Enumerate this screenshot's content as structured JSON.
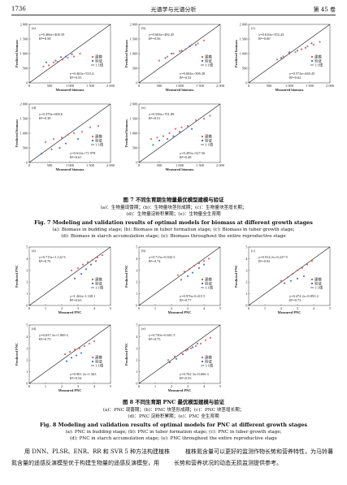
{
  "header": {
    "page": "1736",
    "journal": "光谱学与光谱分析",
    "volume": "第 45 卷"
  },
  "figures": [
    {
      "caption_cn": "图 7   不同生育期生物量最优模型建模与验证",
      "sub_cn": [
        "(a)：生物量现蕾期；(b)：生物量块茎形成期；(c)：生物量块茎增长期；",
        "(d)：生物量淀粉积累期；(e)：生物量全生育期"
      ],
      "caption_en": "Fig. 7   Modeling and validation results of optimal models for biomass at different growth stages",
      "sub_en": [
        "(a): Biomass in budding stage; (b): Biomass in tuber formation stage; (c): Biomass in tuber growth stage;",
        "(d): Biomass in starch accumulation stage; (e): Biomass throughout the entire reproductive stage"
      ],
      "panels": [
        {
          "type": "scatter",
          "label": "(a)",
          "xlabel": "Measured biomass",
          "ylabel": "Predicted biomass",
          "line_label": "1:1线",
          "xlim": [
            0,
            2000
          ],
          "ylim": [
            0,
            2000
          ],
          "xticks": [
            0,
            500,
            {
              "value": 1000,
              "label": "1 000"
            },
            {
              "value": 1500,
              "label": "1 500"
            },
            {
              "value": 2000,
              "label": "2 000"
            }
          ],
          "yticks": [
            0,
            500,
            {
              "value": 1000,
              "label": "1 000"
            },
            {
              "value": 1500,
              "label": "1 500"
            },
            {
              "value": 2000,
              "label": "2 000"
            }
          ],
          "annotations": [
            "y=0.466x+406.39",
            "R²=0.58",
            "y=0.463x+533.4",
            "R²=0.55"
          ],
          "series": [
            {
              "name": "建模",
              "color": "#d9534f",
              "x": [
                350,
                480,
                600,
                700,
                820,
                950,
                1100,
                1250
              ],
              "values": [
                560,
                600,
                700,
                720,
                800,
                860,
                900,
                1000
              ]
            },
            {
              "name": "验证",
              "color": "#3566b8",
              "x": [
                420,
                650,
                780,
                900,
                1050
              ],
              "values": [
                700,
                760,
                880,
                900,
                980
              ]
            }
          ]
        },
        {
          "type": "scatter",
          "label": "(b)",
          "xlabel": "Measured biomass",
          "ylabel": "Predicted biomass",
          "line_label": "1:1线",
          "xlim": [
            0,
            2000
          ],
          "ylim": [
            0,
            2000
          ],
          "xticks": [
            0,
            500,
            {
              "value": 1000,
              "label": "1 000"
            },
            {
              "value": 1500,
              "label": "1 500"
            },
            {
              "value": 2000,
              "label": "2 000"
            }
          ],
          "yticks": [
            0,
            500,
            {
              "value": 1000,
              "label": "1 000"
            },
            {
              "value": 1500,
              "label": "1 500"
            },
            {
              "value": 2000,
              "label": "2 000"
            }
          ],
          "annotations": [
            "y=0.604x+482.45",
            "R²=0.56",
            "y=0.604x+506.38",
            "R²=0.52"
          ],
          "series": [
            {
              "name": "建模",
              "color": "#d9534f",
              "x": [
                500,
                700,
                850,
                1000,
                1150,
                1300,
                1450,
                1600
              ],
              "values": [
                760,
                900,
                1000,
                1080,
                1150,
                1300,
                1350,
                1450
              ]
            },
            {
              "name": "验证",
              "color": "#3566b8",
              "x": [
                650,
                800,
                1050,
                1250,
                1400
              ],
              "values": [
                850,
                1000,
                1100,
                1250,
                1300
              ]
            }
          ]
        },
        {
          "type": "scatter",
          "label": "(c)",
          "xlabel": "Measured biomass",
          "ylabel": "Predicted biomass",
          "line_label": "1:1线",
          "xlim": [
            0,
            2000
          ],
          "ylim": [
            0,
            2000
          ],
          "xticks": [
            0,
            500,
            {
              "value": 1000,
              "label": "1 000"
            },
            {
              "value": 1500,
              "label": "1 500"
            },
            {
              "value": 2000,
              "label": "2 000"
            }
          ],
          "yticks": [
            0,
            500,
            {
              "value": 1000,
              "label": "1 000"
            },
            {
              "value": 1500,
              "label": "1 500"
            },
            {
              "value": 2000,
              "label": "2 000"
            }
          ],
          "annotations": [
            "y=0.616x+352.43",
            "R²=0.60",
            "y=0.574x+440.45",
            "R²=0.62"
          ],
          "series": [
            {
              "name": "建模",
              "color": "#d9534f",
              "x": [
                700,
                850,
                1000,
                1150,
                1300,
                1450,
                1600,
                1750
              ],
              "values": [
                800,
                900,
                1000,
                1050,
                1150,
                1250,
                1300,
                1400
              ]
            },
            {
              "name": "验证",
              "color": "#3566b8",
              "x": [
                800,
                1000,
                1200,
                1400,
                1550
              ],
              "values": [
                850,
                1050,
                1100,
                1200,
                1350
              ]
            }
          ]
        },
        {
          "type": "scatter",
          "label": "(d)",
          "xlabel": "Measured biomass",
          "ylabel": "Predicted biomass",
          "line_label": "1:1线",
          "xlim": [
            0,
            2000
          ],
          "ylim": [
            0,
            2000
          ],
          "xticks": [
            0,
            500,
            {
              "value": 1000,
              "label": "1 000"
            },
            {
              "value": 1500,
              "label": "1 500"
            },
            {
              "value": 2000,
              "label": "2 000"
            }
          ],
          "yticks": [
            0,
            500,
            {
              "value": 1000,
              "label": "1 000"
            },
            {
              "value": 1500,
              "label": "1 500"
            },
            {
              "value": 2000,
              "label": "2 000"
            }
          ],
          "annotations": [
            "y=0.379x+609.6",
            "R²=0.38",
            "y=0.614x+71.978",
            "R²=0.61"
          ],
          "series": [
            {
              "name": "建模",
              "color": "#d9534f",
              "x": [
                400,
                600,
                800,
                950,
                1100,
                1300,
                1500,
                1700
              ],
              "values": [
                700,
                800,
                850,
                950,
                1000,
                1050,
                1200,
                1250
              ]
            },
            {
              "name": "验证",
              "color": "#3566b8",
              "x": [
                300,
                550,
                750,
                900,
                1200
              ],
              "values": [
                300,
                450,
                500,
                650,
                800
              ]
            }
          ]
        },
        {
          "type": "scatter",
          "label": "(e)",
          "xlabel": "Measured biomass",
          "ylabel": "Predicted biomass",
          "line_label": "1:1线",
          "xlim": [
            0,
            2000
          ],
          "ylim": [
            0,
            2000
          ],
          "xticks": [
            0,
            500,
            {
              "value": 1000,
              "label": "1 000"
            },
            {
              "value": 1500,
              "label": "1 500"
            },
            {
              "value": 2000,
              "label": "2 000"
            }
          ],
          "yticks": [
            0,
            500,
            {
              "value": 1000,
              "label": "1 000"
            },
            {
              "value": 1500,
              "label": "1 500"
            },
            {
              "value": 2000,
              "label": "2 000"
            }
          ],
          "annotations": [
            "y=0.538x+701.89",
            "R²=0.51",
            "y=0.495x+527.56",
            "R²=0.48"
          ],
          "series": [
            {
              "name": "建模",
              "color": "#d9534f",
              "x": [
                300,
                450,
                600,
                750,
                900,
                1050,
                1200,
                1400,
                1600,
                1750
              ],
              "values": [
                800,
                850,
                900,
                1000,
                1150,
                1200,
                1250,
                1450,
                1500,
                1600
              ]
            },
            {
              "name": "验证",
              "color": "#3566b8",
              "x": [
                350,
                500,
                700,
                850,
                1000,
                1300
              ],
              "values": [
                600,
                750,
                800,
                900,
                1050,
                1150
              ]
            }
          ]
        }
      ]
    },
    {
      "caption_cn": "图 8   不同生育期 PNC 最优模型建模与验证",
      "sub_cn": [
        "(a)：PNC 现蕾期；(b)：PNC 块茎形成期；(c)：PNC 块茎增长期；",
        "(d)：PNC 淀粉积累期；(e)：PNC 全生育期"
      ],
      "caption_en": "Fig. 8   Modeling and validation results of optimal models for PNC at different growth stages",
      "sub_en": [
        "(a): PNC in budding stage; (b): PNC in tuber formation stage; (c): PNC in tuber growth stage;",
        "(d): PNC in starch accumulation stage; (e): PNC throughout the entire reproductive stage"
      ],
      "panels": [
        {
          "type": "scatter",
          "label": "(a)",
          "xlabel": "Measured PNC",
          "ylabel": "Predicted PNC",
          "line_label": "1:1线",
          "xlim": [
            0,
            5
          ],
          "ylim": [
            0,
            5
          ],
          "xticks": [
            0,
            1,
            2,
            3,
            4,
            5
          ],
          "yticks": [
            0,
            1,
            2,
            3,
            4,
            5
          ],
          "annotations": [
            "y=0.715x+1.122 9",
            "R²=0.76",
            "y=1.262x-1.338 1",
            "R²=0.63"
          ],
          "series": [
            {
              "name": "建模",
              "color": "#d9534f",
              "x": [
                2.6,
                3.0,
                3.3,
                3.6,
                3.9,
                4.2,
                4.5
              ],
              "values": [
                3.0,
                3.2,
                3.5,
                3.7,
                3.9,
                4.1,
                4.3
              ]
            },
            {
              "name": "验证",
              "color": "#3566b8",
              "x": [
                2.8,
                3.2,
                3.5,
                3.8,
                4.1
              ],
              "values": [
                2.3,
                2.7,
                3.1,
                3.5,
                3.8
              ]
            }
          ]
        },
        {
          "type": "scatter",
          "label": "(b)",
          "xlabel": "Measured PNC",
          "ylabel": "Predicted PNC",
          "line_label": "1:1线",
          "xlim": [
            0,
            5
          ],
          "ylim": [
            0,
            5
          ],
          "xticks": [
            0,
            1,
            2,
            3,
            4,
            5
          ],
          "yticks": [
            0,
            1,
            2,
            3,
            4,
            5
          ],
          "annotations": [
            "y=0.713x+0.943 5",
            "R²=0.74",
            "y=0.976x-0.415 5",
            "R²=0.77"
          ],
          "series": [
            {
              "name": "建模",
              "color": "#d9534f",
              "x": [
                2.4,
                2.8,
                3.1,
                3.4,
                3.7,
                4.0,
                4.3
              ],
              "values": [
                2.6,
                2.9,
                3.1,
                3.4,
                3.6,
                3.8,
                4.0
              ]
            },
            {
              "name": "验证",
              "color": "#3566b8",
              "x": [
                2.6,
                3.0,
                3.3,
                3.7,
                4.0
              ],
              "values": [
                2.2,
                2.5,
                2.8,
                3.2,
                3.5
              ]
            }
          ]
        },
        {
          "type": "scatter",
          "label": "(c)",
          "xlabel": "Measured PNC",
          "ylabel": "Predicted PNC",
          "line_label": "1:1线",
          "xlim": [
            0,
            5
          ],
          "ylim": [
            0,
            5
          ],
          "xticks": [
            0,
            1,
            2,
            3,
            4,
            5
          ],
          "yticks": [
            0,
            1,
            2,
            3,
            4,
            5
          ],
          "annotations": [
            "y=0.914 2x+0.227 9",
            "R²=0.92",
            "y=0.474 2x+0.893 4",
            "R²=0.73"
          ],
          "series": [
            {
              "name": "建模",
              "color": "#d9534f",
              "x": [
                2.0,
                2.4,
                2.7,
                3.0,
                3.3,
                3.6,
                3.9
              ],
              "values": [
                2.1,
                2.4,
                2.7,
                3.0,
                3.2,
                3.5,
                3.8
              ]
            },
            {
              "name": "验证",
              "color": "#3566b8",
              "x": [
                2.2,
                2.6,
                3.0,
                3.4
              ],
              "values": [
                1.9,
                2.1,
                2.3,
                2.5
              ]
            }
          ]
        },
        {
          "type": "scatter",
          "label": "(d)",
          "xlabel": "Measured PNC",
          "ylabel": "Predicted PNC",
          "line_label": "1:1线",
          "xlim": [
            0,
            5
          ],
          "ylim": [
            0,
            5
          ],
          "xticks": [
            0,
            1,
            2,
            3,
            4,
            5
          ],
          "yticks": [
            0,
            1,
            2,
            3,
            4,
            5
          ],
          "annotations": [
            "y=0.637 3x+1.069 4",
            "R²=0.75",
            "y=0.901 2x+1.363",
            "R²=0.54"
          ],
          "series": [
            {
              "name": "建模",
              "color": "#d9534f",
              "x": [
                2.2,
                2.5,
                2.8,
                3.1,
                3.4,
                3.7,
                4.0
              ],
              "values": [
                2.5,
                2.7,
                2.9,
                3.0,
                3.2,
                3.4,
                3.6
              ]
            },
            {
              "name": "验证",
              "color": "#3566b8",
              "x": [
                2.3,
                2.6,
                2.9,
                3.2
              ],
              "values": [
                1.9,
                2.2,
                2.4,
                2.6
              ]
            }
          ]
        },
        {
          "type": "scatter",
          "label": "(e)",
          "xlabel": "Measured PNC",
          "ylabel": "Predicted PNC",
          "line_label": "1:1线",
          "xlim": [
            0,
            5
          ],
          "ylim": [
            0,
            5
          ],
          "xticks": [
            0,
            1,
            2,
            3,
            4,
            5
          ],
          "yticks": [
            0,
            1,
            2,
            3,
            4,
            5
          ],
          "annotations": [
            "y=0.730x+0.601 5",
            "R²=0.75",
            "y=0.762 3x+0.606 3",
            "R²=0.55"
          ],
          "series": [
            {
              "name": "建模",
              "color": "#d9534f",
              "x": [
                1.8,
                2.2,
                2.6,
                2.9,
                3.2,
                3.5,
                3.8,
                4.1,
                4.4
              ],
              "values": [
                2.0,
                2.3,
                2.6,
                2.8,
                3.0,
                3.2,
                3.4,
                3.7,
                3.9
              ]
            },
            {
              "name": "验证",
              "color": "#3566b8",
              "x": [
                1.9,
                2.3,
                2.7,
                3.0,
                3.3,
                3.6
              ],
              "values": [
                1.8,
                2.1,
                2.5,
                2.9,
                3.1,
                3.4
              ]
            }
          ]
        }
      ]
    }
  ],
  "body": {
    "left": [
      "用 DNN、PLSR、ENR、RR 和 SVR 5 种方法构建植株",
      "氮含量的遥感反演模型优于构建生物量的遥感反演模型，用"
    ],
    "right": [
      "植株氮含量可以更好的监测作物长势和营养特性，为马铃薯",
      "长势和营养状况的动态无损监测提供参考。"
    ]
  }
}
